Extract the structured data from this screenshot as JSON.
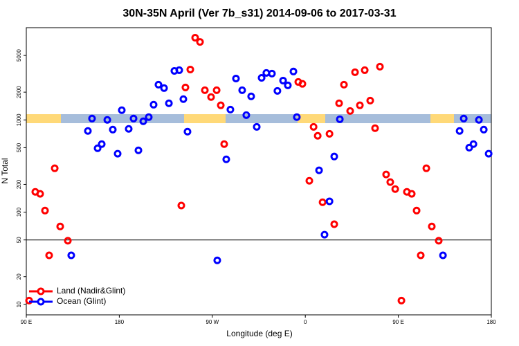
{
  "chart_data": {
    "type": "scatter",
    "title": "30N-35N April (Ver 7b_s31)   2014-09-06 to 2017-03-31",
    "x_label": "Longitude (deg E)",
    "y_label": "N Total",
    "log_y": true,
    "xlim": [
      90,
      540
    ],
    "ylim": [
      7.7,
      10000
    ],
    "xticks": [
      {
        "value": 90,
        "label": "90 E"
      },
      180,
      {
        "value": 270,
        "label": "90 W"
      },
      {
        "value": 360,
        "label": "0"
      },
      {
        "value": 450,
        "label": "90 E"
      },
      {
        "value": 540,
        "label": "180"
      }
    ],
    "yticks": [
      10,
      20,
      50,
      100,
      200,
      500,
      1000,
      2000,
      5000
    ],
    "hlines": [
      50
    ],
    "legend": "bottom-left",
    "series": [
      {
        "name": "Land (Nadir&Glint)",
        "color": "#ff0000",
        "x": [
          92.7,
          98.7,
          103.4,
          108.1,
          112.1,
          117.5,
          122.8,
          130.2,
          240,
          248.7,
          244,
          253.4,
          258.1,
          262.8,
          268.8,
          274.2,
          278.2,
          281.5,
          353.2,
          357.2,
          363.9,
          368,
          372,
          376.7,
          383.4,
          388,
          392.7,
          397.4,
          403.4,
          408.1,
          412.8,
          417.5,
          422.8,
          427.5,
          432.2,
          438.2,
          442.2,
          447,
          453,
          458.3,
          463,
          467.7,
          471.7,
          477.1,
          482.4,
          489.1
        ],
        "values": [
          11,
          166,
          158,
          104,
          34,
          299,
          70,
          49,
          118,
          3520,
          2250,
          7780,
          7010,
          2100,
          1770,
          2100,
          1440,
          547,
          2580,
          2460,
          219,
          841,
          673,
          128,
          707,
          74,
          1515,
          2410,
          1250,
          3290,
          1440,
          3460,
          1620,
          813,
          3780,
          256,
          212,
          178,
          11,
          166,
          158,
          104,
          34,
          299,
          70,
          49
        ]
      },
      {
        "name": "Ocean (Glint)",
        "color": "#0000ff",
        "x": [
          133.5,
          149.6,
          153.6,
          159,
          163,
          168.4,
          173.7,
          178.4,
          182.4,
          189.1,
          193.8,
          198.5,
          203.2,
          208.5,
          213.2,
          217.9,
          223.3,
          228,
          233.3,
          238,
          242,
          246,
          274.8,
          283.5,
          287.5,
          292.9,
          298.9,
          302.9,
          307.6,
          313,
          317.7,
          322.3,
          327.7,
          333,
          338.5,
          343.1,
          348.5,
          351.8,
          373.3,
          378.6,
          383.4,
          388,
          393.4,
          493.2,
          509.3,
          513.3,
          518.6,
          522.7,
          528,
          532.7,
          537.4
        ],
        "values": [
          34,
          759,
          1035,
          493,
          547,
          1000,
          785,
          430,
          1274,
          800,
          1035,
          468,
          966,
          1072,
          1462,
          2410,
          2213,
          1515,
          3400,
          3460,
          1680,
          746,
          30,
          374,
          1294,
          2810,
          2100,
          1127,
          1800,
          841,
          2860,
          3230,
          3180,
          2065,
          2670,
          2370,
          3350,
          1072,
          284,
          57,
          131,
          401,
          1017,
          34,
          759,
          1035,
          500,
          547,
          1000,
          785,
          430
        ]
      }
    ]
  }
}
